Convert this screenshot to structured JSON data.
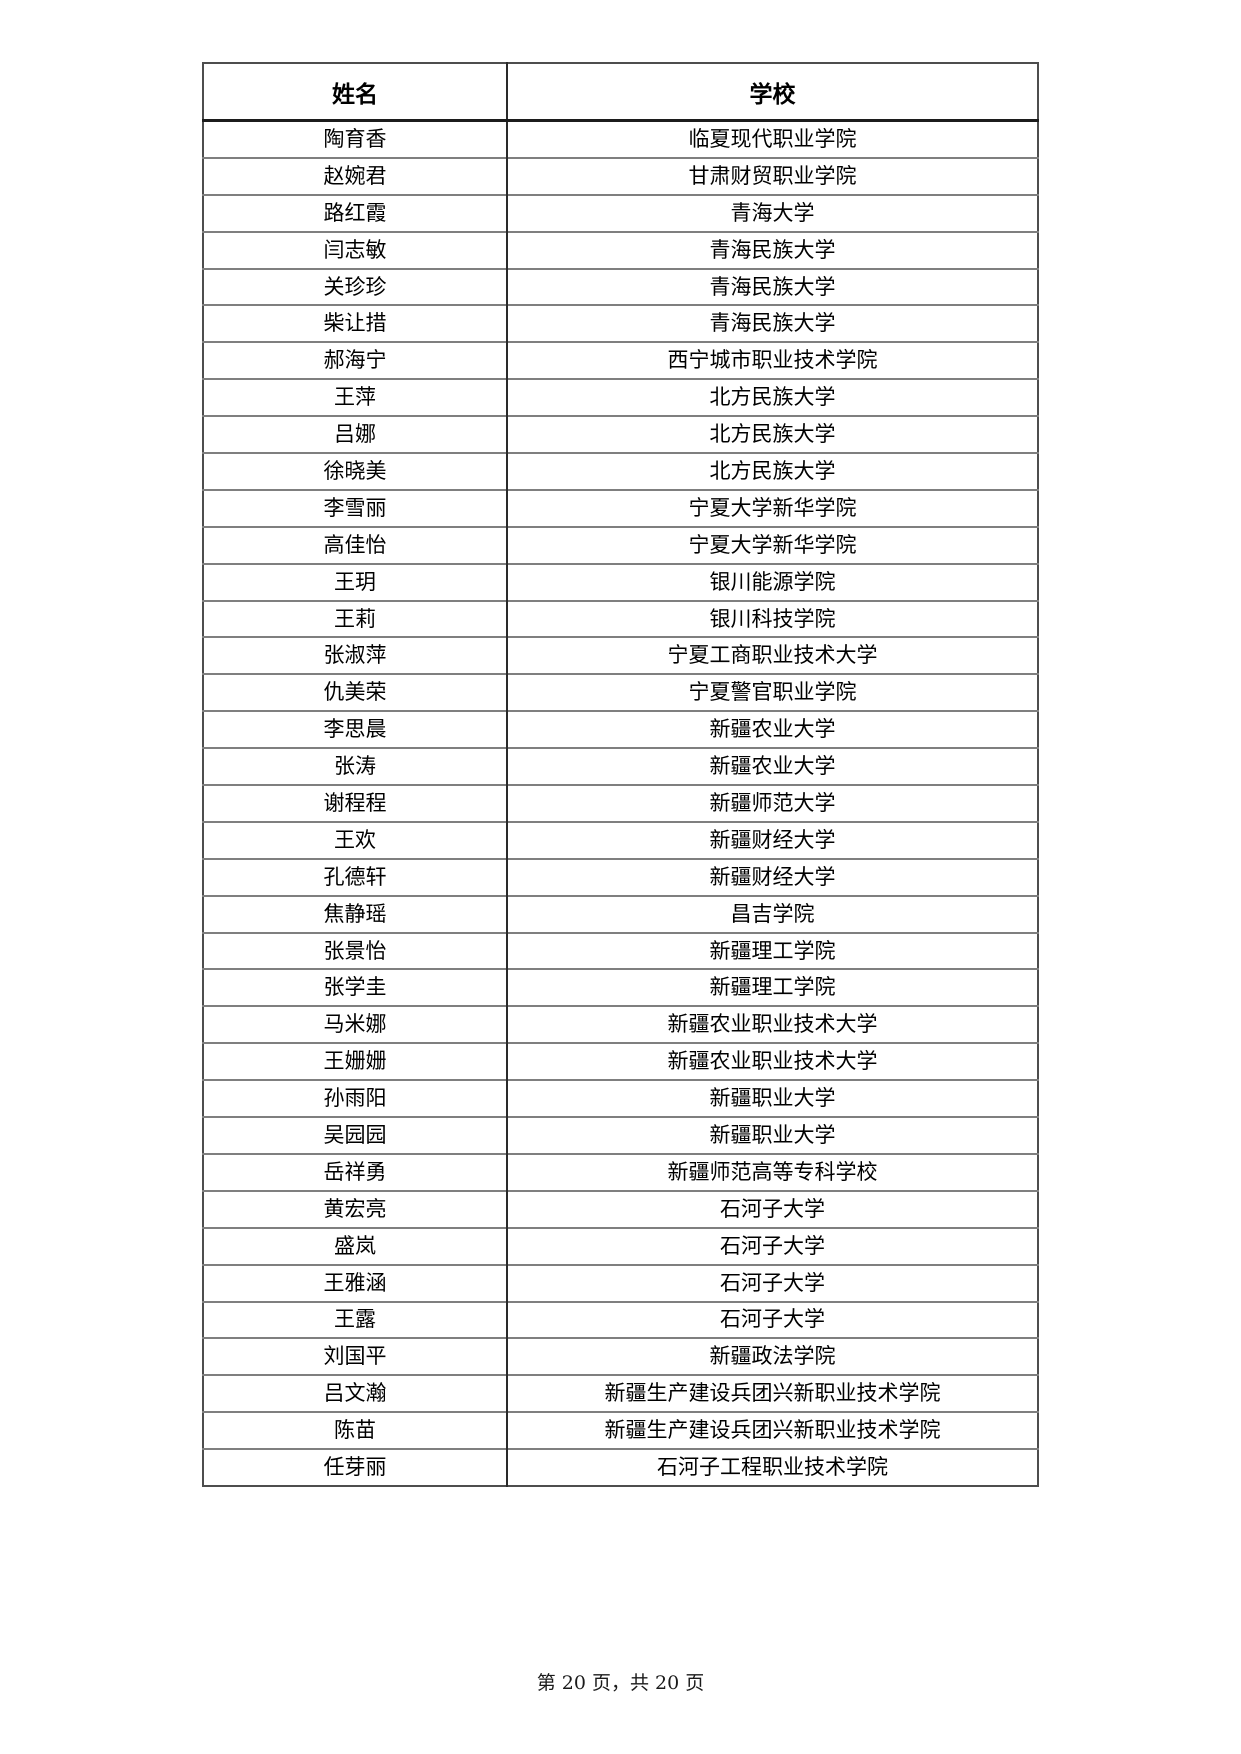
{
  "document": {
    "table": {
      "columns": [
        "姓名",
        "学校"
      ],
      "rows": [
        [
          "陶育香",
          "临夏现代职业学院"
        ],
        [
          "赵婉君",
          "甘肃财贸职业学院"
        ],
        [
          "路红霞",
          "青海大学"
        ],
        [
          "闫志敏",
          "青海民族大学"
        ],
        [
          "关珍珍",
          "青海民族大学"
        ],
        [
          "柴让措",
          "青海民族大学"
        ],
        [
          "郝海宁",
          "西宁城市职业技术学院"
        ],
        [
          "王萍",
          "北方民族大学"
        ],
        [
          "吕娜",
          "北方民族大学"
        ],
        [
          "徐晓美",
          "北方民族大学"
        ],
        [
          "李雪丽",
          "宁夏大学新华学院"
        ],
        [
          "高佳怡",
          "宁夏大学新华学院"
        ],
        [
          "王玥",
          "银川能源学院"
        ],
        [
          "王莉",
          "银川科技学院"
        ],
        [
          "张淑萍",
          "宁夏工商职业技术大学"
        ],
        [
          "仇美荣",
          "宁夏警官职业学院"
        ],
        [
          "李思晨",
          "新疆农业大学"
        ],
        [
          "张涛",
          "新疆农业大学"
        ],
        [
          "谢程程",
          "新疆师范大学"
        ],
        [
          "王欢",
          "新疆财经大学"
        ],
        [
          "孔德轩",
          "新疆财经大学"
        ],
        [
          "焦静瑶",
          "昌吉学院"
        ],
        [
          "张景怡",
          "新疆理工学院"
        ],
        [
          "张学圭",
          "新疆理工学院"
        ],
        [
          "马米娜",
          "新疆农业职业技术大学"
        ],
        [
          "王姗姗",
          "新疆农业职业技术大学"
        ],
        [
          "孙雨阳",
          "新疆职业大学"
        ],
        [
          "吴园园",
          "新疆职业大学"
        ],
        [
          "岳祥勇",
          "新疆师范高等专科学校"
        ],
        [
          "黄宏亮",
          "石河子大学"
        ],
        [
          "盛岚",
          "石河子大学"
        ],
        [
          "王雅涵",
          "石河子大学"
        ],
        [
          "王露",
          "石河子大学"
        ],
        [
          "刘国平",
          "新疆政法学院"
        ],
        [
          "吕文瀚",
          "新疆生产建设兵团兴新职业技术学院"
        ],
        [
          "陈苗",
          "新疆生产建设兵团兴新职业技术学院"
        ],
        [
          "任芽丽",
          "石河子工程职业技术学院"
        ]
      ]
    },
    "footer": {
      "page_indicator": "第 20 页，共 20 页"
    }
  }
}
